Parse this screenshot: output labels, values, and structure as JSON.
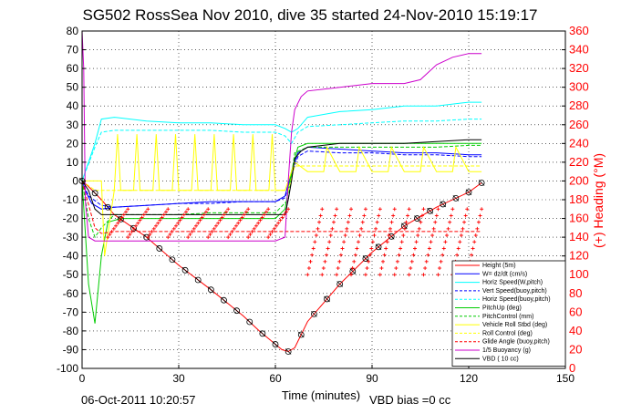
{
  "chart_data": {
    "type": "line",
    "title": "SG502 RossSea Nov 2010, dive 35 started 24-Nov-2010 15:19:17",
    "xlabel": "Time (minutes)",
    "ylabel": "",
    "y2label": "(+) Heading (°M)",
    "xlim": [
      0,
      150
    ],
    "ylim": [
      -100,
      80
    ],
    "y2lim": [
      0,
      360
    ],
    "xticks": [
      0,
      30,
      60,
      90,
      120,
      150
    ],
    "yticks": [
      -100,
      -90,
      -80,
      -70,
      -60,
      -50,
      -40,
      -30,
      -20,
      -10,
      0,
      10,
      20,
      30,
      40,
      50,
      60,
      70,
      80
    ],
    "y2ticks": [
      0,
      20,
      40,
      60,
      80,
      100,
      120,
      140,
      160,
      180,
      200,
      220,
      240,
      260,
      280,
      300,
      320,
      340,
      360
    ],
    "grid": true,
    "legend_position": "bottom-right",
    "footer_left": "06-Oct-2011 10:20:57",
    "footer_right": "VBD bias =0 cc",
    "colors": {
      "height": "#ff0000",
      "w": "#0000ff",
      "horz_w_pitch": "#00ffff",
      "vert_buoy": "#0000ff",
      "horz_buoy": "#00ffff",
      "pitch_up": "#00cc00",
      "pitch_control": "#00cc00",
      "roll": "#ffff00",
      "roll_control": "#ffff00",
      "glide_angle": "#ff0000",
      "buoyancy": "#cc00cc",
      "vbd": "#000000",
      "heading": "#ff0000"
    },
    "series": [
      {
        "name": "Height (5m)",
        "key": "height",
        "style": "solid",
        "x": [
          0,
          2,
          6,
          10,
          20,
          30,
          40,
          50,
          55,
          62,
          64,
          66,
          70,
          80,
          90,
          100,
          110,
          120,
          124
        ],
        "y": [
          0,
          -3,
          -10,
          -18,
          -30,
          -45,
          -58,
          -72,
          -80,
          -90,
          -91,
          -89,
          -75,
          -55,
          -38,
          -24,
          -14,
          -6,
          -1
        ]
      },
      {
        "name": "W= dz/dt (cm/s)",
        "key": "w",
        "style": "solid",
        "x": [
          0,
          1,
          3,
          6,
          10,
          20,
          30,
          40,
          50,
          60,
          63,
          65,
          67,
          70,
          80,
          90,
          100,
          110,
          120,
          124
        ],
        "y": [
          0,
          -5,
          -12,
          -15,
          -14,
          -13,
          -12,
          -11,
          -11,
          -11,
          -8,
          5,
          15,
          18,
          17,
          16,
          15,
          15,
          14,
          14
        ]
      },
      {
        "name": "Horiz Speed(W,pitch)",
        "key": "horz_w_pitch",
        "style": "solid",
        "x": [
          0,
          4,
          6,
          10,
          20,
          30,
          40,
          50,
          60,
          63,
          65,
          67,
          70,
          80,
          90,
          100,
          110,
          120,
          124
        ],
        "y": [
          0,
          20,
          33,
          34,
          32,
          31,
          31,
          30,
          30,
          28,
          26,
          28,
          34,
          37,
          38,
          40,
          40,
          42,
          42
        ]
      },
      {
        "name": "Vert Speed(buoy,pitch)",
        "key": "vert_buoy",
        "style": "dashed",
        "x": [
          0,
          2,
          6,
          10,
          20,
          30,
          40,
          50,
          60,
          63,
          65,
          67,
          70,
          80,
          90,
          100,
          110,
          120,
          124
        ],
        "y": [
          0,
          -8,
          -13,
          -14,
          -13,
          -12,
          -12,
          -11,
          -11,
          -9,
          3,
          13,
          16,
          15,
          15,
          14,
          14,
          13,
          13
        ]
      },
      {
        "name": "Horiz Speed(buoy,pitch)",
        "key": "horz_buoy",
        "style": "dashed",
        "x": [
          0,
          4,
          6,
          10,
          20,
          30,
          40,
          50,
          60,
          63,
          65,
          67,
          70,
          80,
          90,
          100,
          110,
          120,
          124
        ],
        "y": [
          0,
          18,
          26,
          27,
          27,
          27,
          27,
          26,
          26,
          24,
          20,
          26,
          29,
          30,
          31,
          32,
          32,
          33,
          33
        ]
      },
      {
        "name": "PitchUp (deg)",
        "key": "pitch_up",
        "style": "solid",
        "x": [
          0,
          2,
          4,
          6,
          8,
          12,
          20,
          30,
          40,
          50,
          60,
          63,
          65,
          67,
          70,
          80,
          90,
          100,
          110,
          120,
          124
        ],
        "y": [
          0,
          -55,
          -76,
          -40,
          -22,
          -20,
          -20,
          -20,
          -20,
          -20,
          -20,
          -15,
          5,
          18,
          20,
          20,
          20,
          20,
          20,
          20,
          20
        ]
      },
      {
        "name": "PitchControl (mm)",
        "key": "pitch_control",
        "style": "dashed",
        "x": [
          0,
          2,
          4,
          6,
          10,
          20,
          30,
          40,
          50,
          60,
          64,
          66,
          70,
          80,
          90,
          100,
          110,
          120,
          124
        ],
        "y": [
          0,
          -20,
          -30,
          -25,
          -18,
          -18,
          -18,
          -17,
          -17,
          -17,
          -10,
          15,
          18,
          18,
          18,
          18,
          18,
          19,
          19
        ]
      },
      {
        "name": "Vehicle Roll Stbd (deg)",
        "key": "roll",
        "style": "solid",
        "x": [
          0,
          4,
          6,
          7,
          10,
          11,
          12,
          16,
          17,
          18,
          22,
          23,
          24,
          28,
          29,
          30,
          34,
          35,
          36,
          40,
          41,
          42,
          46,
          47,
          48,
          52,
          53,
          54,
          58,
          59,
          60,
          63,
          66,
          70,
          75,
          76,
          80,
          85,
          86,
          90,
          95,
          96,
          100,
          105,
          106,
          110,
          115,
          116,
          120,
          124
        ],
        "y": [
          0,
          0,
          0,
          -40,
          -5,
          25,
          -5,
          -5,
          25,
          -5,
          -5,
          25,
          -5,
          -5,
          25,
          -5,
          -5,
          25,
          -5,
          -5,
          25,
          -5,
          -5,
          25,
          -5,
          -5,
          25,
          -5,
          -5,
          25,
          -5,
          -5,
          10,
          5,
          5,
          18,
          5,
          5,
          18,
          5,
          5,
          18,
          5,
          5,
          18,
          5,
          5,
          18,
          5,
          5
        ]
      },
      {
        "name": "Roll Control (deg)",
        "key": "roll_control",
        "style": "dashed",
        "x": [
          0,
          4,
          10,
          20,
          30,
          40,
          50,
          60,
          64,
          66,
          70,
          80,
          90,
          100,
          110,
          120,
          124
        ],
        "y": [
          0,
          -5,
          -5,
          -5,
          -5,
          -5,
          -5,
          -5,
          -5,
          8,
          8,
          8,
          8,
          8,
          8,
          8,
          8
        ]
      },
      {
        "name": "Glide Angle (buoy,pitch)",
        "key": "glide_angle",
        "style": "dashed",
        "x": [
          0,
          4,
          6,
          10,
          20,
          30,
          40,
          50,
          60,
          63,
          65,
          67,
          70,
          80,
          90,
          100,
          110,
          120,
          124
        ],
        "y": [
          0,
          -25,
          -28,
          -27,
          -27,
          -27,
          -27,
          -27,
          -27,
          -27,
          -27,
          -27,
          -27,
          -27,
          -27,
          -27,
          -27,
          -27,
          -27
        ]
      },
      {
        "name": "1/5 Buoyancy (g)",
        "key": "buoyancy",
        "style": "solid",
        "x": [
          0,
          0.5,
          1,
          2,
          4,
          8,
          12,
          30,
          60,
          63,
          64,
          65,
          66,
          68,
          70,
          80,
          90,
          100,
          105,
          110,
          115,
          120,
          124
        ],
        "y": [
          80,
          60,
          -10,
          -30,
          -32,
          -32,
          -32,
          -32,
          -32,
          -30,
          0,
          26,
          38,
          45,
          48,
          50,
          52,
          52,
          54,
          62,
          66,
          68,
          68
        ]
      },
      {
        "name": "VBD ( 10 cc)",
        "key": "vbd",
        "style": "solid",
        "x": [
          0,
          2,
          4,
          6,
          10,
          30,
          60,
          63,
          64,
          65,
          66,
          68,
          70,
          80,
          90,
          100,
          110,
          120,
          124
        ],
        "y": [
          0,
          -5,
          -15,
          -18,
          -18,
          -18,
          -18,
          -18,
          -10,
          0,
          12,
          16,
          18,
          20,
          20,
          20,
          21,
          22,
          22
        ]
      }
    ],
    "heading_series": {
      "name": "(+) Heading (°M)",
      "axis": "right",
      "segments": [
        {
          "x0": 8,
          "x1": 64,
          "cycles": 9,
          "low": 140,
          "high": 170
        },
        {
          "x0": 70,
          "x1": 124,
          "cycles": 12,
          "low": 100,
          "high": 170
        }
      ]
    },
    "marker_interval_min": 4
  }
}
